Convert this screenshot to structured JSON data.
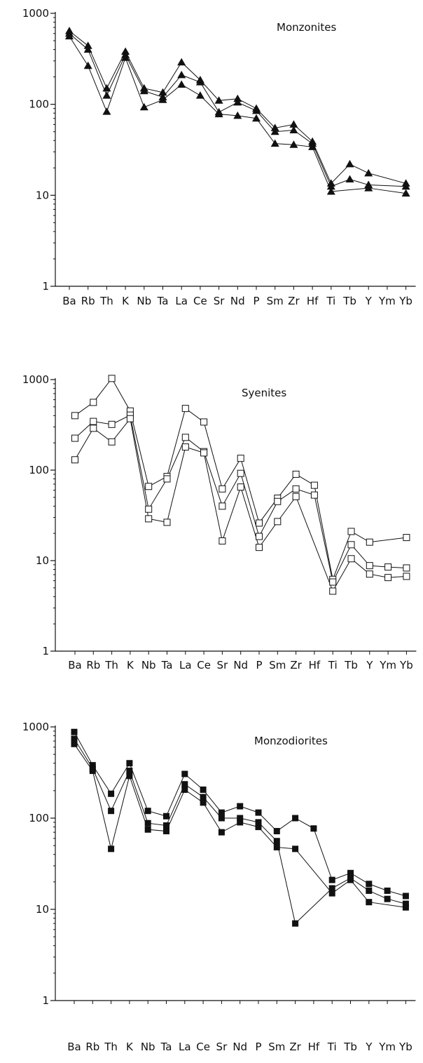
{
  "chart_data": [
    {
      "type": "line",
      "title": "Monzonites",
      "scale": "log",
      "ylim": [
        1,
        1000
      ],
      "yticks": [
        "1",
        "10",
        "100",
        "1000"
      ],
      "marker": "filled-triangle",
      "categories": [
        "Ba",
        "Rb",
        "Th",
        "K",
        "Nb",
        "Ta",
        "La",
        "Ce",
        "Sr",
        "Nd",
        "P",
        "Sm",
        "Zr",
        "Hf",
        "Ti",
        "Tb",
        "Y",
        "Ym",
        "Yb"
      ],
      "series": [
        {
          "values": [
            640,
            440,
            150,
            380,
            150,
            135,
            290,
            185,
            110,
            115,
            90,
            55,
            60,
            39,
            13.5,
            22,
            17.5,
            null,
            13.5
          ]
        },
        {
          "values": [
            600,
            400,
            125,
            350,
            140,
            120,
            210,
            175,
            82,
            105,
            85,
            50,
            52,
            37,
            12.5,
            15,
            13,
            null,
            12.5
          ]
        },
        {
          "values": [
            560,
            265,
            83,
            325,
            93,
            112,
            165,
            125,
            78,
            75,
            70,
            37,
            36,
            34,
            11,
            null,
            12,
            null,
            10.5
          ]
        }
      ]
    },
    {
      "type": "line",
      "title": "Syenites",
      "scale": "log",
      "ylim": [
        1,
        1000
      ],
      "yticks": [
        "1",
        "10",
        "100",
        "1000"
      ],
      "marker": "open-square",
      "categories": [
        "Ba",
        "Rb",
        "Th",
        "K",
        "Nb",
        "Ta",
        "La",
        "Ce",
        "Sr",
        "Nd",
        "P",
        "Sm",
        "Zr",
        "Hf",
        "Ti",
        "Tb",
        "Y",
        "Ym",
        "Yb"
      ],
      "series": [
        {
          "values": [
            400,
            560,
            1030,
            450,
            66,
            85,
            480,
            340,
            62,
            135,
            26,
            49,
            90,
            68,
            6.2,
            21,
            16,
            null,
            18
          ]
        },
        {
          "values": [
            225,
            345,
            320,
            405,
            37,
            80,
            230,
            160,
            40,
            92,
            18.5,
            45,
            62,
            53,
            5.8,
            15,
            8.8,
            8.5,
            8.3
          ]
        },
        {
          "values": [
            130,
            290,
            205,
            370,
            29,
            26.5,
            180,
            155,
            16.5,
            65,
            14,
            27,
            51,
            null,
            4.6,
            10.5,
            7.1,
            6.5,
            6.7
          ]
        }
      ]
    },
    {
      "type": "line",
      "title": "Monzodiorites",
      "scale": "log",
      "ylim": [
        1,
        1000
      ],
      "yticks": [
        "1",
        "10",
        "100",
        "1000"
      ],
      "marker": "filled-square",
      "categories": [
        "Ba",
        "Rb",
        "Th",
        "K",
        "Nb",
        "Ta",
        "La",
        "Ce",
        "Sr",
        "Nd",
        "P",
        "Sm",
        "Zr",
        "Hf",
        "Ti",
        "Tb",
        "Y",
        "Ym",
        "Yb"
      ],
      "series": [
        {
          "values": [
            880,
            380,
            185,
            400,
            120,
            105,
            305,
            205,
            115,
            135,
            115,
            72,
            100,
            77,
            21,
            25,
            19,
            16,
            14
          ]
        },
        {
          "values": [
            740,
            350,
            120,
            330,
            88,
            83,
            235,
            170,
            100,
            100,
            90,
            56,
            7,
            null,
            17,
            22,
            16,
            13,
            11.5
          ]
        },
        {
          "values": [
            650,
            330,
            46,
            290,
            75,
            72,
            205,
            148,
            70,
            90,
            80,
            48,
            46,
            null,
            15,
            21,
            12,
            null,
            10.5
          ]
        }
      ]
    }
  ]
}
